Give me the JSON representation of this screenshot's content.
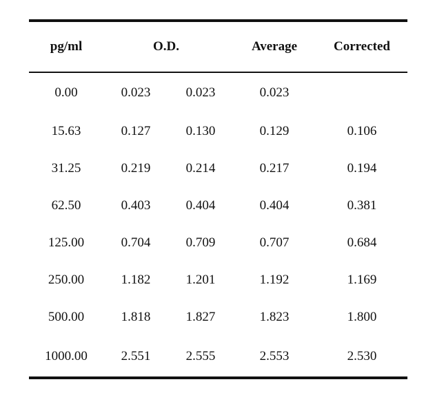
{
  "table": {
    "headers": {
      "concentration": "pg/ml",
      "od": "O.D.",
      "average": "Average",
      "corrected": "Corrected"
    },
    "rows": [
      {
        "concentration": "0.00",
        "od1": "0.023",
        "od2": "0.023",
        "average": "0.023",
        "corrected": ""
      },
      {
        "concentration": "15.63",
        "od1": "0.127",
        "od2": "0.130",
        "average": "0.129",
        "corrected": "0.106"
      },
      {
        "concentration": "31.25",
        "od1": "0.219",
        "od2": "0.214",
        "average": "0.217",
        "corrected": "0.194"
      },
      {
        "concentration": "62.50",
        "od1": "0.403",
        "od2": "0.404",
        "average": "0.404",
        "corrected": "0.381"
      },
      {
        "concentration": "125.00",
        "od1": "0.704",
        "od2": "0.709",
        "average": "0.707",
        "corrected": "0.684"
      },
      {
        "concentration": "250.00",
        "od1": "1.182",
        "od2": "1.201",
        "average": "1.192",
        "corrected": "1.169"
      },
      {
        "concentration": "500.00",
        "od1": "1.818",
        "od2": "1.827",
        "average": "1.823",
        "corrected": "1.800"
      },
      {
        "concentration": "1000.00",
        "od1": "2.551",
        "od2": "2.555",
        "average": "2.553",
        "corrected": "2.530"
      }
    ]
  }
}
